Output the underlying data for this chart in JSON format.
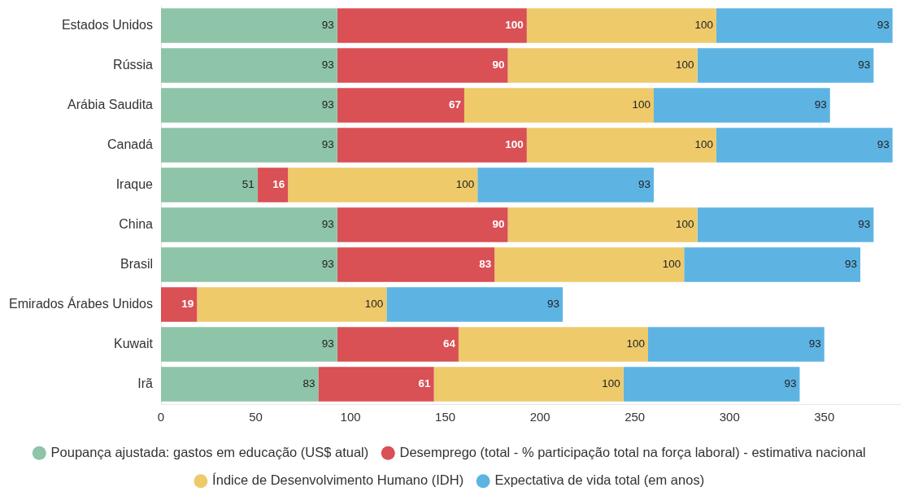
{
  "chart_data": {
    "type": "bar",
    "orientation": "horizontal",
    "stacked": true,
    "data_labels": true,
    "legend": "bottom",
    "categories": [
      "Estados Unidos",
      "Rússia",
      "Arábia Saudita",
      "Canadá",
      "Iraque",
      "China",
      "Brasil",
      "Emirados Árabes Unidos",
      "Kuwait",
      "Irã"
    ],
    "series": [
      {
        "name": "Poupança ajustada: gastos em educação (US$ atual)",
        "color": "#8ec4a8",
        "values": [
          93,
          93,
          93,
          93,
          51,
          93,
          93,
          null,
          93,
          83
        ]
      },
      {
        "name": "Desemprego (total - % participação total na força laboral) - estimativa nacional",
        "color": "#d95055",
        "values": [
          100,
          90,
          67,
          100,
          16,
          90,
          83,
          19,
          64,
          61
        ]
      },
      {
        "name": "Índice de Desenvolvimento Humano (IDH)",
        "color": "#eeca6b",
        "values": [
          100,
          100,
          100,
          100,
          100,
          100,
          100,
          100,
          100,
          100
        ]
      },
      {
        "name": "Expectativa de vida total (em anos)",
        "color": "#5db4e3",
        "values": [
          93,
          93,
          93,
          93,
          93,
          93,
          93,
          93,
          93,
          93
        ]
      }
    ],
    "xlim": [
      0,
      390
    ],
    "xticks": [
      0,
      50,
      100,
      150,
      200,
      250,
      300,
      350
    ]
  }
}
